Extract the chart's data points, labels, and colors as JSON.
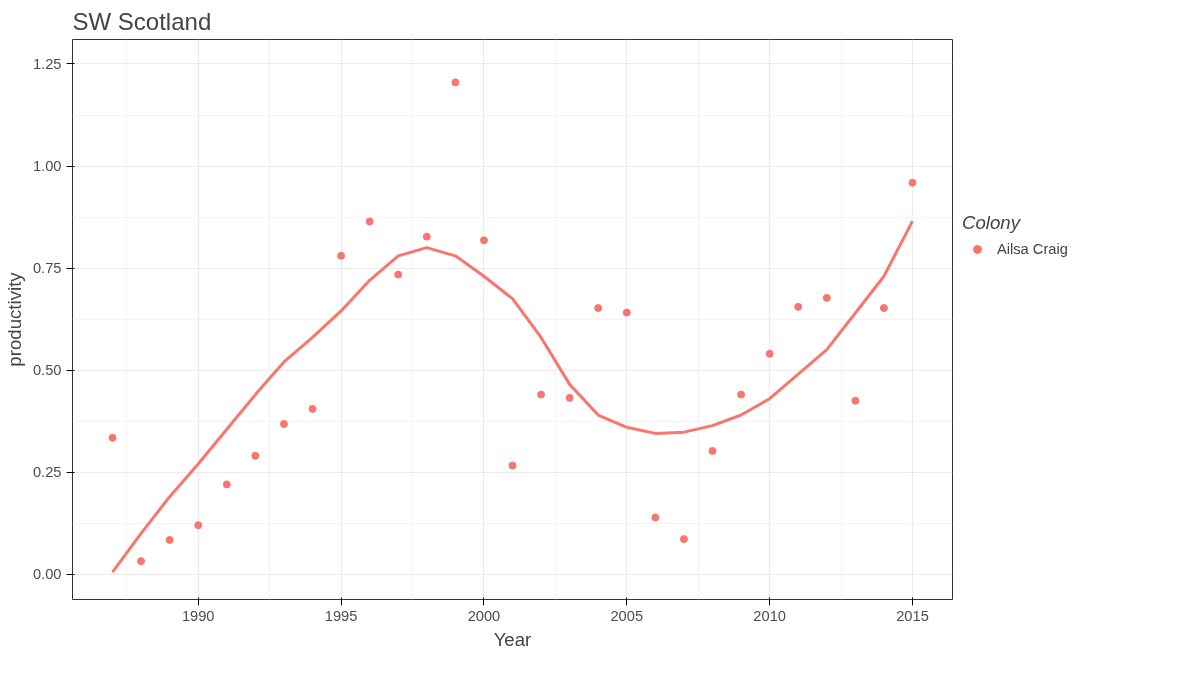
{
  "chart_data": {
    "type": "scatter",
    "title": "SW Scotland",
    "xlabel": "Year",
    "ylabel": "productivity",
    "legend_title": "Colony",
    "x": [
      1987,
      1988,
      1989,
      1990,
      1991,
      1992,
      1993,
      1994,
      1995,
      1996,
      1997,
      1998,
      1999,
      2000,
      2001,
      2002,
      2003,
      2004,
      2005,
      2006,
      2007,
      2008,
      2009,
      2010,
      2011,
      2012,
      2013,
      2014,
      2015
    ],
    "series": [
      {
        "name": "Ailsa Craig",
        "color": "#f8766d",
        "values": [
          0.334,
          0.032,
          0.084,
          0.12,
          0.22,
          0.29,
          0.368,
          0.405,
          0.78,
          0.864,
          0.734,
          0.827,
          1.205,
          0.818,
          0.266,
          0.44,
          0.432,
          0.652,
          0.641,
          0.139,
          0.086,
          0.302,
          0.44,
          0.54,
          0.655,
          0.677,
          0.425,
          0.652,
          0.959
        ]
      },
      {
        "color": "#f8766d",
        "type": "line",
        "marker": "none",
        "x": [
          1987,
          1988,
          1989,
          1990,
          1991,
          1992,
          1993,
          1994,
          1995,
          1996,
          1997,
          1998,
          1999,
          2000,
          2001,
          2002,
          2003,
          2004,
          2005,
          2006,
          2007,
          2008,
          2009,
          2010,
          2011,
          2012,
          2013,
          2014,
          2015
        ],
        "values": [
          0.005,
          0.1,
          0.19,
          0.27,
          0.355,
          0.44,
          0.52,
          0.58,
          0.645,
          0.72,
          0.78,
          0.8,
          0.78,
          0.73,
          0.675,
          0.58,
          0.465,
          0.39,
          0.36,
          0.345,
          0.348,
          0.364,
          0.39,
          0.43,
          0.49,
          0.55,
          0.64,
          0.73,
          0.865
        ]
      }
    ],
    "xlim": [
      1985.6,
      2016.4
    ],
    "xticks": [
      1990,
      1995,
      2000,
      2005,
      2010,
      2015
    ],
    "ylim": [
      -0.062,
      1.31
    ],
    "yticks": [
      {
        "value": 0,
        "label": "0.00"
      },
      {
        "value": 0.25,
        "label": "0.25"
      },
      {
        "value": 0.5,
        "label": "0.50"
      },
      {
        "value": 0.75,
        "label": "0.75"
      },
      {
        "value": 1,
        "label": "1.00"
      },
      {
        "value": 1.25,
        "label": "1.25"
      }
    ],
    "grid": true,
    "legend": "right",
    "marker": "circle"
  }
}
